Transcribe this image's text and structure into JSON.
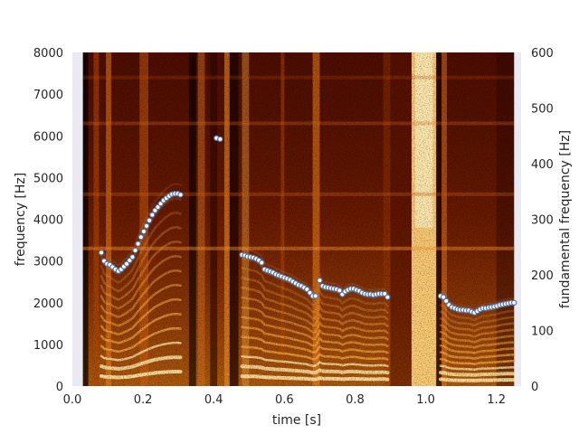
{
  "chart_data": {
    "type": "spectrogram",
    "xlabel": "time [s]",
    "ylabel_left": "frequency [Hz]",
    "ylabel_right": "fundamental frequency [Hz]",
    "xlim": [
      0.0,
      1.27
    ],
    "ylim_left": [
      0,
      8000
    ],
    "ylim_right": [
      0,
      600
    ],
    "x_ticks": [
      0.0,
      0.2,
      0.4,
      0.6,
      0.8,
      1.0,
      1.2
    ],
    "x_tick_labels": [
      "0.0",
      "0.2",
      "0.4",
      "0.6",
      "0.8",
      "1.0",
      "1.2"
    ],
    "y_left_ticks": [
      0,
      1000,
      2000,
      3000,
      4000,
      5000,
      6000,
      7000,
      8000
    ],
    "y_left_tick_labels": [
      "0",
      "1000",
      "2000",
      "3000",
      "4000",
      "5000",
      "6000",
      "7000",
      "8000"
    ],
    "y_right_ticks": [
      0,
      100,
      200,
      300,
      400,
      500,
      600
    ],
    "y_right_tick_labels": [
      "0",
      "100",
      "200",
      "300",
      "400",
      "500",
      "600"
    ],
    "colormap": "afmhot",
    "background_color": "#eaeaf2",
    "marker_color": "#4c72b0",
    "spectrogram_extent_seconds": [
      0.03,
      1.25
    ],
    "f0_series": {
      "name": "",
      "axis": "right",
      "points": [
        [
          0.082,
          240
        ],
        [
          0.09,
          225
        ],
        [
          0.098,
          220
        ],
        [
          0.106,
          218
        ],
        [
          0.114,
          214
        ],
        [
          0.122,
          210
        ],
        [
          0.13,
          207
        ],
        [
          0.138,
          210
        ],
        [
          0.146,
          215
        ],
        [
          0.154,
          220
        ],
        [
          0.162,
          226
        ],
        [
          0.17,
          232
        ],
        [
          0.178,
          244
        ],
        [
          0.186,
          256
        ],
        [
          0.194,
          268
        ],
        [
          0.202,
          278
        ],
        [
          0.21,
          288
        ],
        [
          0.218,
          298
        ],
        [
          0.226,
          308
        ],
        [
          0.234,
          316
        ],
        [
          0.242,
          322
        ],
        [
          0.25,
          328
        ],
        [
          0.258,
          334
        ],
        [
          0.266,
          338
        ],
        [
          0.274,
          342
        ],
        [
          0.282,
          345
        ],
        [
          0.29,
          346
        ],
        [
          0.298,
          346
        ],
        [
          0.306,
          344
        ],
        [
          0.408,
          446
        ],
        [
          0.418,
          444
        ],
        [
          0.48,
          236
        ],
        [
          0.488,
          235
        ],
        [
          0.496,
          233
        ],
        [
          0.504,
          232
        ],
        [
          0.512,
          231
        ],
        [
          0.52,
          229
        ],
        [
          0.528,
          226
        ],
        [
          0.536,
          222
        ],
        [
          0.544,
          210
        ],
        [
          0.552,
          208
        ],
        [
          0.56,
          206
        ],
        [
          0.568,
          204
        ],
        [
          0.576,
          201
        ],
        [
          0.584,
          199
        ],
        [
          0.592,
          197
        ],
        [
          0.6,
          195
        ],
        [
          0.608,
          193
        ],
        [
          0.616,
          191
        ],
        [
          0.624,
          188
        ],
        [
          0.632,
          185
        ],
        [
          0.64,
          182
        ],
        [
          0.648,
          180
        ],
        [
          0.656,
          177
        ],
        [
          0.664,
          174
        ],
        [
          0.672,
          168
        ],
        [
          0.68,
          162
        ],
        [
          0.688,
          162
        ],
        [
          0.7,
          190
        ],
        [
          0.708,
          180
        ],
        [
          0.716,
          178
        ],
        [
          0.724,
          177
        ],
        [
          0.732,
          176
        ],
        [
          0.74,
          175
        ],
        [
          0.748,
          174
        ],
        [
          0.756,
          172
        ],
        [
          0.764,
          165
        ],
        [
          0.772,
          170
        ],
        [
          0.78,
          173
        ],
        [
          0.788,
          175
        ],
        [
          0.796,
          175
        ],
        [
          0.804,
          173
        ],
        [
          0.812,
          171
        ],
        [
          0.82,
          168
        ],
        [
          0.828,
          166
        ],
        [
          0.836,
          165
        ],
        [
          0.844,
          165
        ],
        [
          0.852,
          164
        ],
        [
          0.86,
          165
        ],
        [
          0.868,
          166
        ],
        [
          0.876,
          166
        ],
        [
          0.884,
          166
        ],
        [
          0.892,
          160
        ],
        [
          1.042,
          162
        ],
        [
          1.05,
          160
        ],
        [
          1.058,
          153
        ],
        [
          1.066,
          146
        ],
        [
          1.074,
          142
        ],
        [
          1.082,
          140
        ],
        [
          1.09,
          138
        ],
        [
          1.098,
          137
        ],
        [
          1.106,
          137
        ],
        [
          1.114,
          136
        ],
        [
          1.122,
          136
        ],
        [
          1.13,
          134
        ],
        [
          1.138,
          132
        ],
        [
          1.146,
          135
        ],
        [
          1.154,
          138
        ],
        [
          1.162,
          140
        ],
        [
          1.17,
          140
        ],
        [
          1.178,
          141
        ],
        [
          1.186,
          142
        ],
        [
          1.194,
          143
        ],
        [
          1.202,
          144
        ],
        [
          1.21,
          146
        ],
        [
          1.218,
          147
        ],
        [
          1.226,
          148
        ],
        [
          1.234,
          149
        ],
        [
          1.242,
          150
        ],
        [
          1.25,
          150
        ]
      ]
    }
  }
}
